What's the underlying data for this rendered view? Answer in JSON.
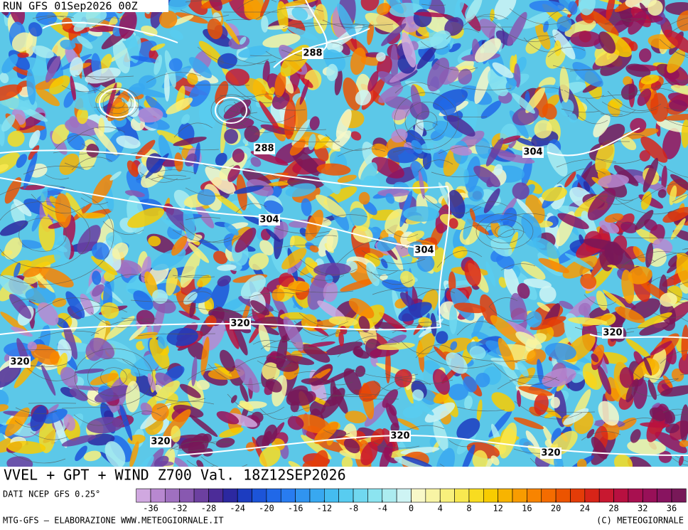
{
  "header": {
    "run": "RUN GFS 01Sep2026 00Z"
  },
  "map": {
    "title": "VVEL + GPT + WIND Z700 Val. 18Z12SEP2026",
    "contour_labels": [
      288,
      288,
      304,
      304,
      304,
      320,
      320,
      320,
      320,
      320,
      320
    ]
  },
  "colorbar": {
    "source": "DATI NCEP GFS 0.25°",
    "ticks": [
      -36,
      -32,
      -28,
      -24,
      -20,
      -16,
      -12,
      -8,
      -4,
      0,
      4,
      8,
      12,
      16,
      20,
      24,
      28,
      32,
      36
    ],
    "colors": [
      "#d0a8e0",
      "#b888d0",
      "#a070c0",
      "#8858b0",
      "#6c40a0",
      "#4c2c98",
      "#2c28a0",
      "#1c3cc0",
      "#1c54d8",
      "#2068e8",
      "#287cf0",
      "#3094f0",
      "#38a8f0",
      "#44bcf0",
      "#58ccf0",
      "#70d8f0",
      "#8ce4f0",
      "#acecf0",
      "#cef4f4",
      "#f8f8c8",
      "#f8f4a4",
      "#f8f07c",
      "#f8e850",
      "#f8dc20",
      "#f8cc00",
      "#f8b400",
      "#f89c00",
      "#f88400",
      "#f46c00",
      "#ec5400",
      "#e43c08",
      "#d82418",
      "#c81830",
      "#b81040",
      "#a81050",
      "#981058",
      "#881460",
      "#781858"
    ]
  },
  "footer": {
    "left": "MTG-GFS — ELABORAZIONE WWW.METEOGIORNALE.IT",
    "right": "(C) METEOGIORNALE"
  }
}
